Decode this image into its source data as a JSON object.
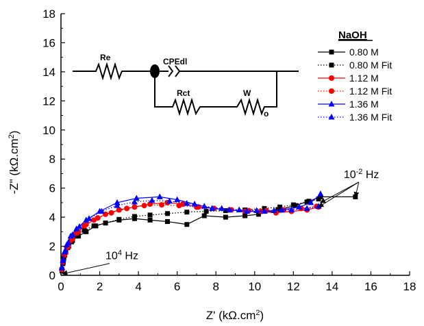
{
  "chart_data": {
    "type": "scatter",
    "xlabel": "Z' (kΩ.cm²)",
    "ylabel": "-Z\" (kΩ.cm²)",
    "xlim": [
      0,
      18
    ],
    "ylim": [
      0,
      18
    ],
    "x_ticks": [
      "0",
      "2",
      "4",
      "6",
      "8",
      "10",
      "12",
      "14",
      "16",
      "18"
    ],
    "y_ticks": [
      "0",
      "2",
      "4",
      "6",
      "8",
      "10",
      "12",
      "14",
      "16",
      "18"
    ],
    "legend_title": "NaOH",
    "legend_position": "top-right",
    "grid": false,
    "series": [
      {
        "name": "0.80 M",
        "color": "#000000",
        "marker": "square",
        "line": "solid",
        "points": [
          [
            0.05,
            0.3
          ],
          [
            0.1,
            0.8
          ],
          [
            0.15,
            1.2
          ],
          [
            0.25,
            1.6
          ],
          [
            0.4,
            2.0
          ],
          [
            0.6,
            2.4
          ],
          [
            0.9,
            2.7
          ],
          [
            1.3,
            3.0
          ],
          [
            1.8,
            3.4
          ],
          [
            2.3,
            3.6
          ],
          [
            3.0,
            3.8
          ],
          [
            3.8,
            3.9
          ],
          [
            4.6,
            3.8
          ],
          [
            5.5,
            3.7
          ],
          [
            6.5,
            3.5
          ],
          [
            7.4,
            4.1
          ],
          [
            8.5,
            4.0
          ],
          [
            9.5,
            4.1
          ],
          [
            10.2,
            4.2
          ],
          [
            11.2,
            4.5
          ],
          [
            12.1,
            4.8
          ],
          [
            12.8,
            5.1
          ],
          [
            13.4,
            5.4
          ],
          [
            15.2,
            5.4
          ]
        ]
      },
      {
        "name": "0.80 M Fit",
        "color": "#000000",
        "marker": "square",
        "line": "dotted",
        "points": [
          [
            0.05,
            0.4
          ],
          [
            0.12,
            0.9
          ],
          [
            0.2,
            1.4
          ],
          [
            0.35,
            1.9
          ],
          [
            0.55,
            2.3
          ],
          [
            0.8,
            2.7
          ],
          [
            1.2,
            3.1
          ],
          [
            1.7,
            3.4
          ],
          [
            2.3,
            3.6
          ],
          [
            3.0,
            3.85
          ],
          [
            3.8,
            4.05
          ],
          [
            4.6,
            4.15
          ],
          [
            5.5,
            4.25
          ],
          [
            6.5,
            4.35
          ],
          [
            7.5,
            4.4
          ],
          [
            8.5,
            4.45
          ],
          [
            9.5,
            4.5
          ],
          [
            10.5,
            4.6
          ],
          [
            11.3,
            4.7
          ],
          [
            12.0,
            4.85
          ],
          [
            12.7,
            5.05
          ],
          [
            13.3,
            5.25
          ]
        ]
      },
      {
        "name": "1.12 M",
        "color": "#ff0000",
        "marker": "circle",
        "line": "solid",
        "points": [
          [
            0.05,
            0.4
          ],
          [
            0.1,
            0.9
          ],
          [
            0.18,
            1.4
          ],
          [
            0.3,
            1.9
          ],
          [
            0.5,
            2.4
          ],
          [
            0.8,
            2.9
          ],
          [
            1.2,
            3.4
          ],
          [
            1.7,
            3.8
          ],
          [
            2.3,
            4.2
          ],
          [
            3.0,
            4.5
          ],
          [
            3.8,
            4.7
          ],
          [
            4.6,
            4.9
          ],
          [
            5.5,
            5.0
          ],
          [
            6.3,
            4.9
          ],
          [
            7.1,
            4.7
          ],
          [
            7.9,
            4.6
          ],
          [
            8.7,
            4.5
          ],
          [
            9.5,
            4.4
          ],
          [
            10.3,
            4.4
          ],
          [
            11.1,
            4.3
          ],
          [
            11.9,
            4.4
          ],
          [
            12.7,
            4.5
          ],
          [
            13.3,
            4.7
          ]
        ]
      },
      {
        "name": "1.12 M Fit",
        "color": "#ff0000",
        "marker": "circle",
        "line": "dotted",
        "points": [
          [
            0.05,
            0.45
          ],
          [
            0.12,
            1.0
          ],
          [
            0.22,
            1.5
          ],
          [
            0.38,
            2.0
          ],
          [
            0.6,
            2.5
          ],
          [
            0.9,
            3.0
          ],
          [
            1.3,
            3.5
          ],
          [
            1.9,
            3.95
          ],
          [
            2.6,
            4.3
          ],
          [
            3.4,
            4.6
          ],
          [
            4.3,
            4.8
          ],
          [
            5.2,
            4.85
          ],
          [
            6.1,
            4.8
          ],
          [
            7.0,
            4.7
          ],
          [
            7.9,
            4.6
          ],
          [
            8.8,
            4.5
          ],
          [
            9.7,
            4.45
          ],
          [
            10.6,
            4.45
          ],
          [
            11.5,
            4.5
          ],
          [
            12.4,
            4.6
          ],
          [
            13.2,
            4.75
          ]
        ]
      },
      {
        "name": "1.36 M",
        "color": "#0000ff",
        "marker": "triangle",
        "line": "solid",
        "points": [
          [
            0.05,
            0.5
          ],
          [
            0.1,
            1.0
          ],
          [
            0.18,
            1.6
          ],
          [
            0.3,
            2.1
          ],
          [
            0.5,
            2.7
          ],
          [
            0.8,
            3.2
          ],
          [
            1.3,
            3.8
          ],
          [
            2.0,
            4.4
          ],
          [
            2.9,
            5.0
          ],
          [
            3.9,
            5.3
          ],
          [
            5.1,
            5.4
          ],
          [
            6.0,
            5.2
          ],
          [
            6.9,
            4.9
          ],
          [
            7.8,
            4.6
          ],
          [
            8.7,
            4.5
          ],
          [
            9.6,
            4.4
          ],
          [
            10.5,
            4.4
          ],
          [
            11.4,
            4.5
          ],
          [
            12.3,
            4.7
          ],
          [
            12.9,
            5.0
          ],
          [
            13.4,
            5.6
          ]
        ]
      },
      {
        "name": "1.36 M Fit",
        "color": "#0000ff",
        "marker": "triangle",
        "line": "dotted",
        "points": [
          [
            0.05,
            0.55
          ],
          [
            0.12,
            1.1
          ],
          [
            0.22,
            1.7
          ],
          [
            0.38,
            2.25
          ],
          [
            0.6,
            2.8
          ],
          [
            0.95,
            3.35
          ],
          [
            1.45,
            3.9
          ],
          [
            2.1,
            4.4
          ],
          [
            2.9,
            4.8
          ],
          [
            3.8,
            5.05
          ],
          [
            4.7,
            5.15
          ],
          [
            5.6,
            5.1
          ],
          [
            6.5,
            4.95
          ],
          [
            7.4,
            4.75
          ],
          [
            8.3,
            4.6
          ],
          [
            9.2,
            4.5
          ],
          [
            10.1,
            4.45
          ],
          [
            11.0,
            4.45
          ],
          [
            11.9,
            4.5
          ],
          [
            12.7,
            4.6
          ],
          [
            13.3,
            4.75
          ]
        ]
      }
    ],
    "annotations": [
      {
        "text": "10",
        "sup": "-2",
        "suffix": " Hz",
        "at": [
          14.6,
          6.7
        ],
        "arrows_to": [
          [
            15.2,
            5.4
          ],
          [
            13.4,
            5.0
          ],
          [
            13.3,
            4.7
          ]
        ]
      },
      {
        "text": "10",
        "sup": "4",
        "suffix": " Hz",
        "at": [
          2.3,
          1.1
        ],
        "arrows_to": [
          [
            0.08,
            0.1
          ]
        ]
      }
    ],
    "circuit": {
      "labels": [
        "Re",
        "CPEdl",
        "Rct",
        "W"
      ],
      "w_subscript": "o"
    }
  }
}
